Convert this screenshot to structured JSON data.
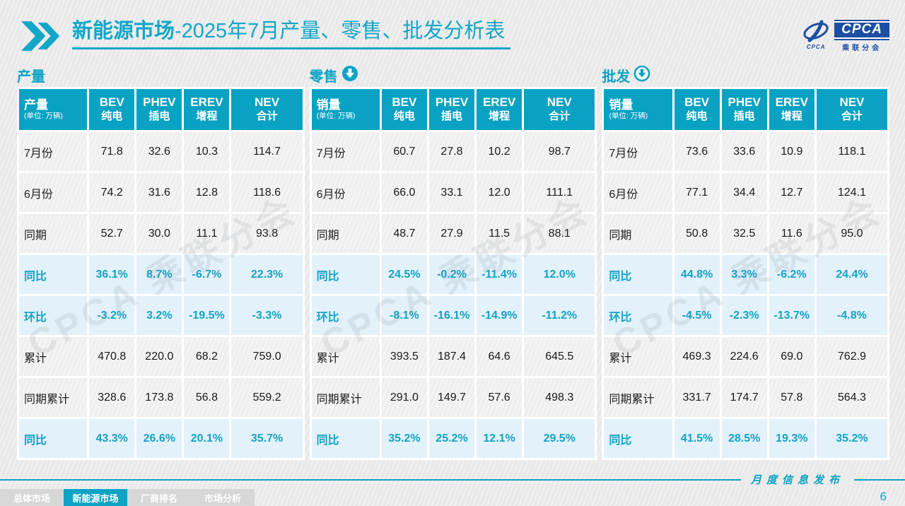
{
  "header": {
    "title_bold": "新能源市场",
    "title_rest": "-2025年7月产量、零售、批发分析表"
  },
  "logo": {
    "acronym": "CPCA",
    "name": "乘联分会",
    "swirl_caption": "CPCA"
  },
  "watermark": "CPCA 乘联分会",
  "colors": {
    "teal": "#0ca3c4",
    "header_bg": "#09a2c3",
    "highlight_bg": "#e3f1fa",
    "logo_blue": "#1c4fa1"
  },
  "columns": [
    {
      "en": "BEV",
      "zh": "纯电"
    },
    {
      "en": "PHEV",
      "zh": "插电"
    },
    {
      "en": "EREV",
      "zh": "增程"
    },
    {
      "en": "NEV",
      "zh": "合计"
    }
  ],
  "tables": [
    {
      "section_label": "产量",
      "icon": "none",
      "corner_label": "产量",
      "unit": "(单位: 万辆)",
      "rows": [
        {
          "label": "7月份",
          "highlight": false,
          "values": [
            "71.8",
            "32.6",
            "10.3",
            "114.7"
          ]
        },
        {
          "label": "6月份",
          "highlight": false,
          "values": [
            "74.2",
            "31.6",
            "12.8",
            "118.6"
          ]
        },
        {
          "label": "同期",
          "highlight": false,
          "values": [
            "52.7",
            "30.0",
            "11.1",
            "93.8"
          ]
        },
        {
          "label": "同比",
          "highlight": true,
          "values": [
            "36.1%",
            "8.7%",
            "-6.7%",
            "22.3%"
          ]
        },
        {
          "label": "环比",
          "highlight": true,
          "values": [
            "-3.2%",
            "3.2%",
            "-19.5%",
            "-3.3%"
          ]
        },
        {
          "label": "累计",
          "highlight": false,
          "values": [
            "470.8",
            "220.0",
            "68.2",
            "759.0"
          ]
        },
        {
          "label": "同期累计",
          "highlight": false,
          "values": [
            "328.6",
            "173.8",
            "56.8",
            "559.2"
          ]
        },
        {
          "label": "同比",
          "highlight": true,
          "values": [
            "43.3%",
            "26.6%",
            "20.1%",
            "35.7%"
          ]
        }
      ]
    },
    {
      "section_label": "零售",
      "icon": "arrow-down-filled",
      "corner_label": "销量",
      "unit": "(单位: 万辆)",
      "rows": [
        {
          "label": "7月份",
          "highlight": false,
          "values": [
            "60.7",
            "27.8",
            "10.2",
            "98.7"
          ]
        },
        {
          "label": "6月份",
          "highlight": false,
          "values": [
            "66.0",
            "33.1",
            "12.0",
            "111.1"
          ]
        },
        {
          "label": "同期",
          "highlight": false,
          "values": [
            "48.7",
            "27.9",
            "11.5",
            "88.1"
          ]
        },
        {
          "label": "同比",
          "highlight": true,
          "values": [
            "24.5%",
            "-0.2%",
            "-11.4%",
            "12.0%"
          ]
        },
        {
          "label": "环比",
          "highlight": true,
          "values": [
            "-8.1%",
            "-16.1%",
            "-14.9%",
            "-11.2%"
          ]
        },
        {
          "label": "累计",
          "highlight": false,
          "values": [
            "393.5",
            "187.4",
            "64.6",
            "645.5"
          ]
        },
        {
          "label": "同期累计",
          "highlight": false,
          "values": [
            "291.0",
            "149.7",
            "57.6",
            "498.3"
          ]
        },
        {
          "label": "同比",
          "highlight": true,
          "values": [
            "35.2%",
            "25.2%",
            "12.1%",
            "29.5%"
          ]
        }
      ]
    },
    {
      "section_label": "批发",
      "icon": "arrow-down-outline",
      "corner_label": "销量",
      "unit": "(单位: 万辆)",
      "rows": [
        {
          "label": "7月份",
          "highlight": false,
          "values": [
            "73.6",
            "33.6",
            "10.9",
            "118.1"
          ]
        },
        {
          "label": "6月份",
          "highlight": false,
          "values": [
            "77.1",
            "34.4",
            "12.7",
            "124.1"
          ]
        },
        {
          "label": "同期",
          "highlight": false,
          "values": [
            "50.8",
            "32.5",
            "11.6",
            "95.0"
          ]
        },
        {
          "label": "同比",
          "highlight": true,
          "values": [
            "44.8%",
            "3.3%",
            "-6.2%",
            "24.4%"
          ]
        },
        {
          "label": "环比",
          "highlight": true,
          "values": [
            "-4.5%",
            "-2.3%",
            "-13.7%",
            "-4.8%"
          ]
        },
        {
          "label": "累计",
          "highlight": false,
          "values": [
            "469.3",
            "224.6",
            "69.0",
            "762.9"
          ]
        },
        {
          "label": "同期累计",
          "highlight": false,
          "values": [
            "331.7",
            "174.7",
            "57.8",
            "564.3"
          ]
        },
        {
          "label": "同比",
          "highlight": true,
          "values": [
            "41.5%",
            "28.5%",
            "19.3%",
            "35.2%"
          ]
        }
      ]
    }
  ],
  "footer": {
    "ribbon": "月度信息发布",
    "page_number": "6",
    "tabs": [
      {
        "label": "总体市场",
        "active": false
      },
      {
        "label": "新能源市场",
        "active": true
      },
      {
        "label": "厂商排名",
        "active": false
      },
      {
        "label": "市场分析",
        "active": false
      }
    ]
  }
}
